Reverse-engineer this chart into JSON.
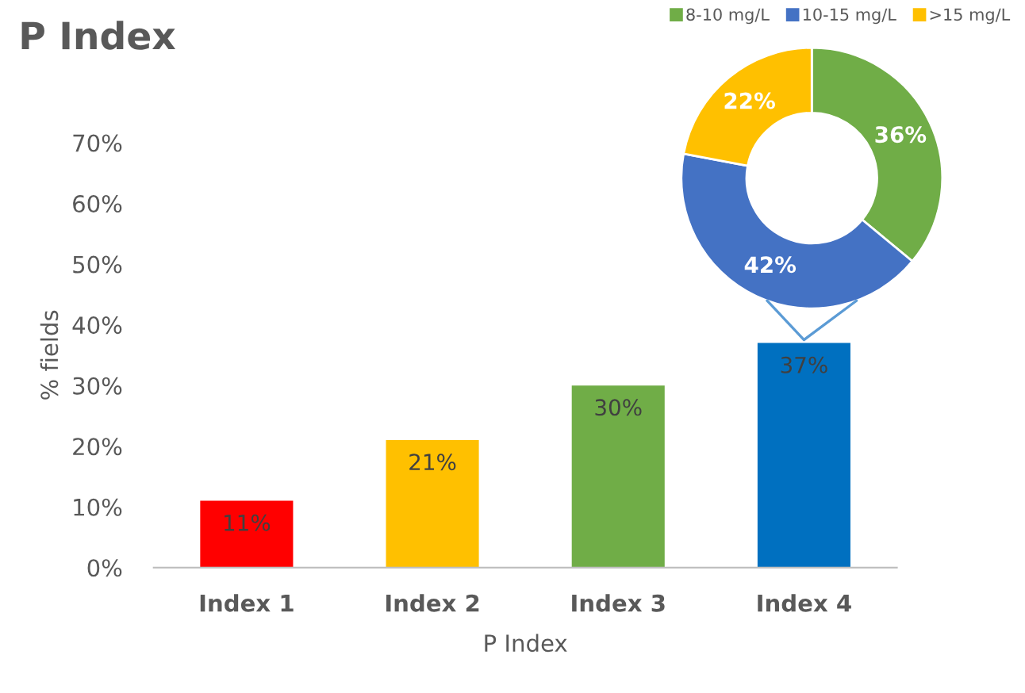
{
  "chart_data": [
    {
      "type": "bar",
      "title": "P Index",
      "xlabel": "P Index",
      "ylabel": "% fields",
      "categories": [
        "Index 1",
        "Index 2",
        "Index 3",
        "Index 4"
      ],
      "values": [
        11,
        21,
        30,
        37
      ],
      "colors": [
        "#ff0000",
        "#ffc000",
        "#70ad47",
        "#0070c0"
      ],
      "value_labels": [
        "11%",
        "21%",
        "30%",
        "37%"
      ],
      "ylim": [
        0,
        70
      ],
      "yticks": [
        {
          "value": 0,
          "label": "0%"
        },
        {
          "value": 10,
          "label": "10%"
        },
        {
          "value": 20,
          "label": "20%"
        },
        {
          "value": 30,
          "label": "30%"
        },
        {
          "value": 40,
          "label": "40%"
        },
        {
          "value": 50,
          "label": "50%"
        },
        {
          "value": 60,
          "label": "60%"
        },
        {
          "value": 70,
          "label": "70%"
        }
      ],
      "grid": false,
      "legend": false
    },
    {
      "type": "donut",
      "categories": [
        "8-10 mg/L",
        "10-15 mg/L",
        ">15 mg/L"
      ],
      "values": [
        36,
        42,
        22
      ],
      "colors": [
        "#70ad47",
        "#4472c4",
        "#ffc000"
      ],
      "value_labels": [
        "36%",
        "42%",
        "22%"
      ],
      "legend": "top right"
    }
  ]
}
